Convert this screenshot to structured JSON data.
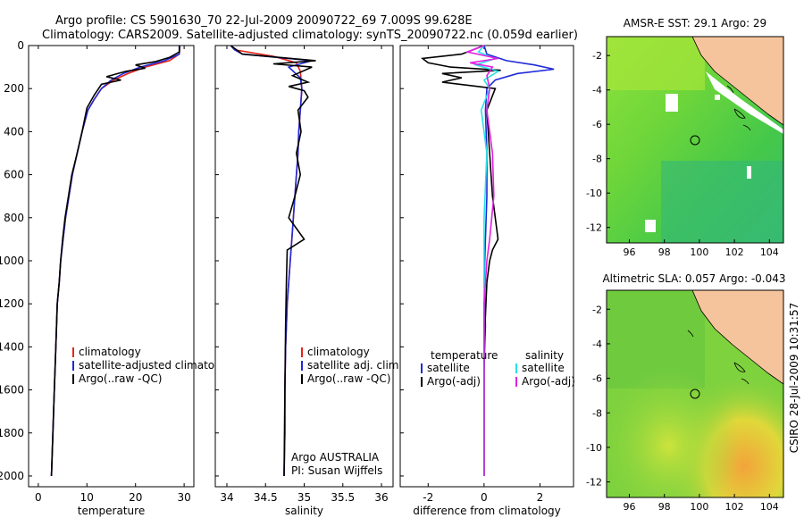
{
  "title_line1": "Argo profile: CS 5901630_70 22-Jul-2009 20090722_69 7.009S 99.628E",
  "title_line2": "Climatology: CARS2009. Satellite-adjusted climatology: synTS_20090722.nc (0.059d earlier)",
  "side_label": "CSIRO 28-Jul-2009 10:31:57",
  "colors": {
    "red": "#e8231a",
    "blue": "#1f2ad8",
    "black": "#000000",
    "cyan": "#28e0e6",
    "magenta": "#e020e0",
    "land": "#f6c49c"
  },
  "chart_data": [
    {
      "type": "line",
      "xlabel": "temperature",
      "xlim": [
        -2,
        32
      ],
      "ylim": [
        2050,
        0
      ],
      "xticks": [
        0,
        10,
        20,
        30
      ],
      "yticks": [
        0,
        200,
        400,
        600,
        800,
        1000,
        1200,
        1400,
        1600,
        1800,
        2000
      ],
      "series": [
        {
          "name": "climatology",
          "color": "#e8231a",
          "x": [
            29.1,
            29,
            27,
            22,
            18.5,
            15.5,
            13,
            11.5,
            10.2,
            9,
            8,
            7,
            6.3,
            5.6,
            5.1,
            4.6,
            4.3,
            3.9,
            3.6,
            3.3,
            3.0,
            2.7
          ],
          "y": [
            0,
            40,
            70,
            100,
            130,
            160,
            200,
            250,
            300,
            400,
            500,
            600,
            700,
            800,
            900,
            1000,
            1100,
            1200,
            1400,
            1600,
            1800,
            2000
          ]
        },
        {
          "name": "satellite-adjusted climatology",
          "color": "#1f2ad8",
          "x": [
            29.1,
            29,
            26,
            21,
            17.5,
            15,
            13,
            11.5,
            10.2,
            9,
            8,
            7,
            6.3,
            5.6,
            5.1,
            4.6,
            4.3,
            3.9,
            3.6,
            3.3,
            3.0,
            2.7
          ],
          "y": [
            0,
            40,
            70,
            100,
            130,
            160,
            200,
            250,
            300,
            400,
            500,
            600,
            700,
            800,
            900,
            1000,
            1100,
            1200,
            1400,
            1600,
            1800,
            2000
          ]
        },
        {
          "name": "Argo(..raw -QC)",
          "color": "#000000",
          "x": [
            29,
            29,
            27,
            24,
            20,
            22,
            18,
            14,
            17,
            13,
            11.5,
            10,
            9,
            8,
            6.9,
            6.2,
            5.5,
            5,
            4.6,
            4.3,
            3.9,
            3.6,
            3.3,
            3.0,
            2.7
          ],
          "y": [
            0,
            30,
            55,
            75,
            90,
            105,
            120,
            145,
            160,
            180,
            230,
            290,
            400,
            500,
            600,
            700,
            800,
            900,
            1000,
            1100,
            1200,
            1400,
            1600,
            1800,
            2000
          ]
        }
      ],
      "legend": [
        "climatology",
        "satellite-adjusted climatology",
        "Argo(..raw -QC)"
      ]
    },
    {
      "type": "line",
      "xlabel": "salinity",
      "xlim": [
        33.85,
        36.15
      ],
      "ylim": [
        2050,
        0
      ],
      "xticks": [
        34,
        34.5,
        35,
        35.5,
        36
      ],
      "annotations": [
        "Argo AUSTRALIA",
        "PI: Susan Wijffels"
      ],
      "series": [
        {
          "name": "climatology",
          "color": "#e8231a",
          "x": [
            34.05,
            34.1,
            34.6,
            34.9,
            34.95,
            34.97,
            34.95,
            34.93,
            34.92,
            34.9,
            34.88,
            34.86,
            34.84,
            34.82,
            34.8,
            34.78,
            34.77,
            34.76,
            34.75,
            34.75,
            34.74
          ],
          "y": [
            0,
            20,
            50,
            80,
            120,
            200,
            300,
            400,
            500,
            600,
            700,
            800,
            900,
            1000,
            1100,
            1200,
            1300,
            1400,
            1600,
            1800,
            2000
          ]
        },
        {
          "name": "satellite adj. clim.",
          "color": "#1f2ad8",
          "x": [
            34.05,
            34.1,
            34.2,
            35.1,
            34.8,
            34.95,
            34.97,
            34.95,
            34.93,
            34.92,
            34.9,
            34.88,
            34.86,
            34.84,
            34.82,
            34.8,
            34.78,
            34.77,
            34.76,
            34.75,
            34.75,
            34.74
          ],
          "y": [
            0,
            20,
            40,
            70,
            100,
            150,
            200,
            300,
            400,
            500,
            600,
            700,
            800,
            900,
            1000,
            1100,
            1200,
            1300,
            1400,
            1600,
            1800,
            2000
          ]
        },
        {
          "name": "Argo(..raw -QC)",
          "color": "#000000",
          "x": [
            34.05,
            34.2,
            35.15,
            34.6,
            35.1,
            34.85,
            35.05,
            34.8,
            35.0,
            35.05,
            34.92,
            34.96,
            34.9,
            34.95,
            34.88,
            34.8,
            35.0,
            34.78,
            34.77,
            34.76,
            34.75,
            34.74
          ],
          "y": [
            0,
            40,
            70,
            85,
            100,
            140,
            170,
            190,
            210,
            240,
            300,
            400,
            500,
            600,
            700,
            800,
            900,
            950,
            1100,
            1300,
            1600,
            2000
          ]
        }
      ],
      "legend": [
        "climatology",
        "satellite adj. clim.",
        "Argo(..raw -QC)"
      ]
    },
    {
      "type": "line",
      "xlabel": "difference from climatology",
      "xlim": [
        -3,
        3.2
      ],
      "ylim": [
        2050,
        0
      ],
      "xticks": [
        -2,
        0,
        2
      ],
      "legend_groups": [
        {
          "title": "temperature",
          "items": [
            "satellite",
            "Argo(-adj)"
          ]
        },
        {
          "title": "salinity",
          "items": [
            "satellite",
            "Argo(-adj)"
          ]
        }
      ],
      "series": [
        {
          "name": "temperature satellite",
          "color": "#1f2ad8",
          "x": [
            0,
            0.1,
            0.8,
            1.8,
            2.5,
            1.2,
            0.4,
            0.1,
            0.05,
            0.1,
            0.1,
            0.05,
            0,
            0.05,
            0,
            0,
            0
          ],
          "y": [
            0,
            40,
            70,
            90,
            110,
            130,
            160,
            200,
            300,
            500,
            700,
            900,
            1100,
            1300,
            1500,
            1800,
            2000
          ]
        },
        {
          "name": "temperature Argo(-adj)",
          "color": "#000000",
          "x": [
            0,
            -0.8,
            -2.2,
            -2,
            -1.2,
            0.6,
            -1.5,
            -0.8,
            -1.5,
            0.4,
            0.1,
            0.2,
            0.3,
            0.5,
            0.3,
            0.2,
            0.1,
            0,
            0
          ],
          "y": [
            0,
            40,
            60,
            80,
            100,
            115,
            130,
            150,
            170,
            200,
            300,
            500,
            700,
            900,
            950,
            1000,
            1100,
            1400,
            2000
          ]
        },
        {
          "name": "salinity satellite",
          "color": "#28e0e6",
          "x": [
            0,
            -0.2,
            0.4,
            -0.3,
            0.5,
            0,
            0.2,
            -0.1,
            0.1,
            0,
            0,
            0
          ],
          "y": [
            0,
            30,
            60,
            90,
            120,
            160,
            200,
            300,
            500,
            800,
            1200,
            2000
          ]
        },
        {
          "name": "salinity Argo(-adj)",
          "color": "#e020e0",
          "x": [
            0,
            -0.6,
            0.5,
            -0.5,
            0.3,
            0.1,
            0.2,
            0.1,
            0.3,
            0.35,
            0.2,
            0.1,
            0,
            0
          ],
          "y": [
            0,
            30,
            60,
            80,
            100,
            140,
            200,
            300,
            500,
            700,
            900,
            1000,
            1200,
            2000
          ]
        }
      ],
      "legend": [
        "satellite",
        "Argo(-adj)",
        "satellite",
        "Argo(-adj)"
      ]
    },
    {
      "type": "heatmap",
      "title": "AMSR-E SST: 29.1  Argo: 29",
      "xlim": [
        94.7,
        104.8
      ],
      "ylim": [
        -12.9,
        -0.9
      ],
      "xticks": [
        96,
        98,
        100,
        102,
        104
      ],
      "yticks": [
        -2,
        -4,
        -6,
        -8,
        -10,
        -12
      ],
      "marker": {
        "lon": 99.63,
        "lat": -7.01
      }
    },
    {
      "type": "heatmap",
      "title": "Altimetric SLA: 0.057  Argo: -0.043",
      "xlim": [
        94.7,
        104.8
      ],
      "ylim": [
        -12.9,
        -0.9
      ],
      "xticks": [
        96,
        98,
        100,
        102,
        104
      ],
      "yticks": [
        -2,
        -4,
        -6,
        -8,
        -10,
        -12
      ],
      "marker": {
        "lon": 99.63,
        "lat": -7.01
      }
    }
  ]
}
